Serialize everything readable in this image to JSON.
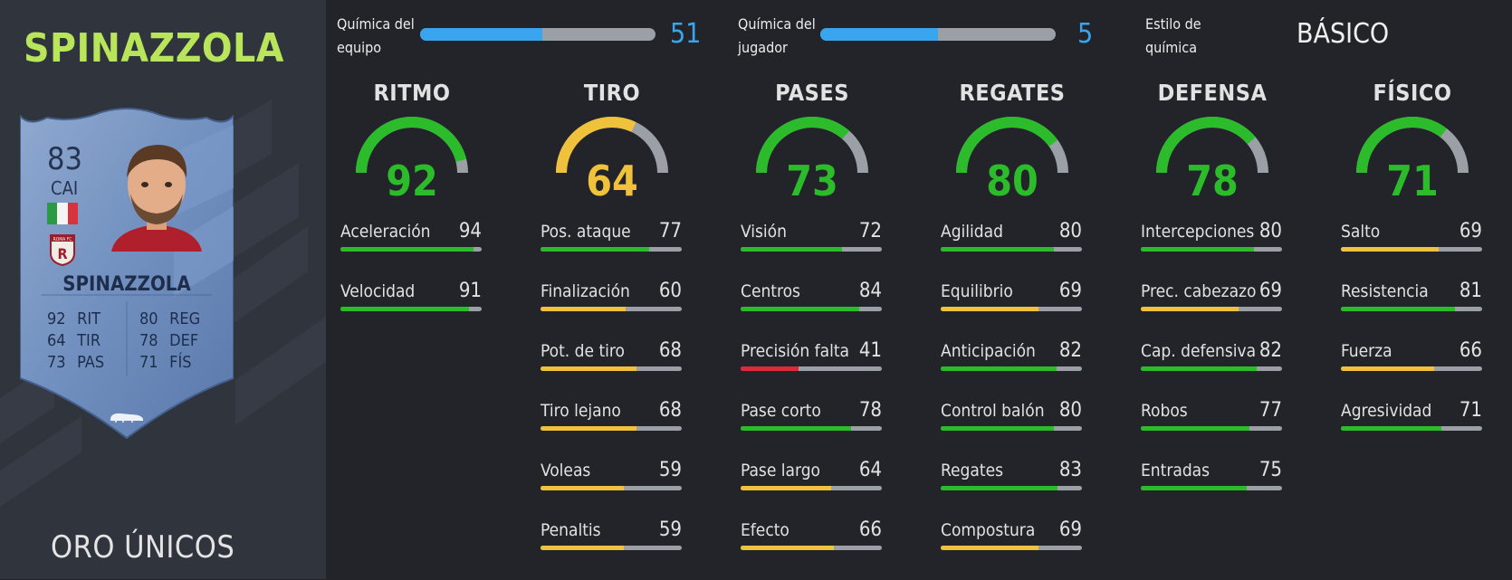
{
  "player": {
    "name": "SPINAZZOLA",
    "edition": "ORO ÚNICOS"
  },
  "card": {
    "rating": "83",
    "position": "CAI",
    "name": "SPINAZZOLA",
    "stats_left": [
      {
        "value": "92",
        "label": "RIT"
      },
      {
        "value": "64",
        "label": "TIR"
      },
      {
        "value": "73",
        "label": "PAS"
      }
    ],
    "stats_right": [
      {
        "value": "80",
        "label": "REG"
      },
      {
        "value": "78",
        "label": "DEF"
      },
      {
        "value": "71",
        "label": "FÍS"
      }
    ],
    "nation_flag": "italy-flag",
    "club_badge": "roma-badge",
    "club_badge_text": "ROMA FC"
  },
  "chemistry": {
    "team": {
      "label_1": "Química del",
      "label_2": "equipo",
      "value": "51",
      "fill_fraction": 0.52
    },
    "player": {
      "label_1": "Química del",
      "label_2": "jugador",
      "value": "5",
      "fill_fraction": 0.5
    },
    "style": {
      "label_1": "Estilo de",
      "label_2": "química",
      "value": "BÁSICO"
    }
  },
  "colors": {
    "green": "#2bbb2b",
    "yellow": "#f0c23c",
    "red": "#dc2a36",
    "gray": "#9aa0a6",
    "blue": "#39a5ee",
    "name_green": "#b9e55a"
  },
  "categories": [
    {
      "key": "ritmo",
      "label": "RITMO",
      "value": 92,
      "stats": [
        {
          "name": "Aceleración",
          "value": 94
        },
        {
          "name": "Velocidad",
          "value": 91
        }
      ]
    },
    {
      "key": "tiro",
      "label": "TIRO",
      "value": 64,
      "stats": [
        {
          "name": "Pos. ataque",
          "value": 77
        },
        {
          "name": "Finalización",
          "value": 60
        },
        {
          "name": "Pot. de tiro",
          "value": 68
        },
        {
          "name": "Tiro lejano",
          "value": 68
        },
        {
          "name": "Voleas",
          "value": 59
        },
        {
          "name": "Penaltis",
          "value": 59
        }
      ]
    },
    {
      "key": "pases",
      "label": "PASES",
      "value": 73,
      "stats": [
        {
          "name": "Visión",
          "value": 72
        },
        {
          "name": "Centros",
          "value": 84
        },
        {
          "name": "Precisión falta",
          "value": 41
        },
        {
          "name": "Pase corto",
          "value": 78
        },
        {
          "name": "Pase largo",
          "value": 64
        },
        {
          "name": "Efecto",
          "value": 66
        }
      ]
    },
    {
      "key": "regates",
      "label": "REGATES",
      "value": 80,
      "stats": [
        {
          "name": "Agilidad",
          "value": 80
        },
        {
          "name": "Equilibrio",
          "value": 69
        },
        {
          "name": "Anticipación",
          "value": 82
        },
        {
          "name": "Control balón",
          "value": 80
        },
        {
          "name": "Regates",
          "value": 83
        },
        {
          "name": "Compostura",
          "value": 69
        }
      ]
    },
    {
      "key": "defensa",
      "label": "DEFENSA",
      "value": 78,
      "stats": [
        {
          "name": "Intercepciones",
          "value": 80
        },
        {
          "name": "Prec. cabezazo",
          "value": 69
        },
        {
          "name": "Cap. defensiva",
          "value": 82
        },
        {
          "name": "Robos",
          "value": 77
        },
        {
          "name": "Entradas",
          "value": 75
        }
      ]
    },
    {
      "key": "fisico",
      "label": "FÍSICO",
      "value": 71,
      "stats": [
        {
          "name": "Salto",
          "value": 69
        },
        {
          "name": "Resistencia",
          "value": 81
        },
        {
          "name": "Fuerza",
          "value": 66
        },
        {
          "name": "Agresividad",
          "value": 71
        }
      ]
    }
  ]
}
